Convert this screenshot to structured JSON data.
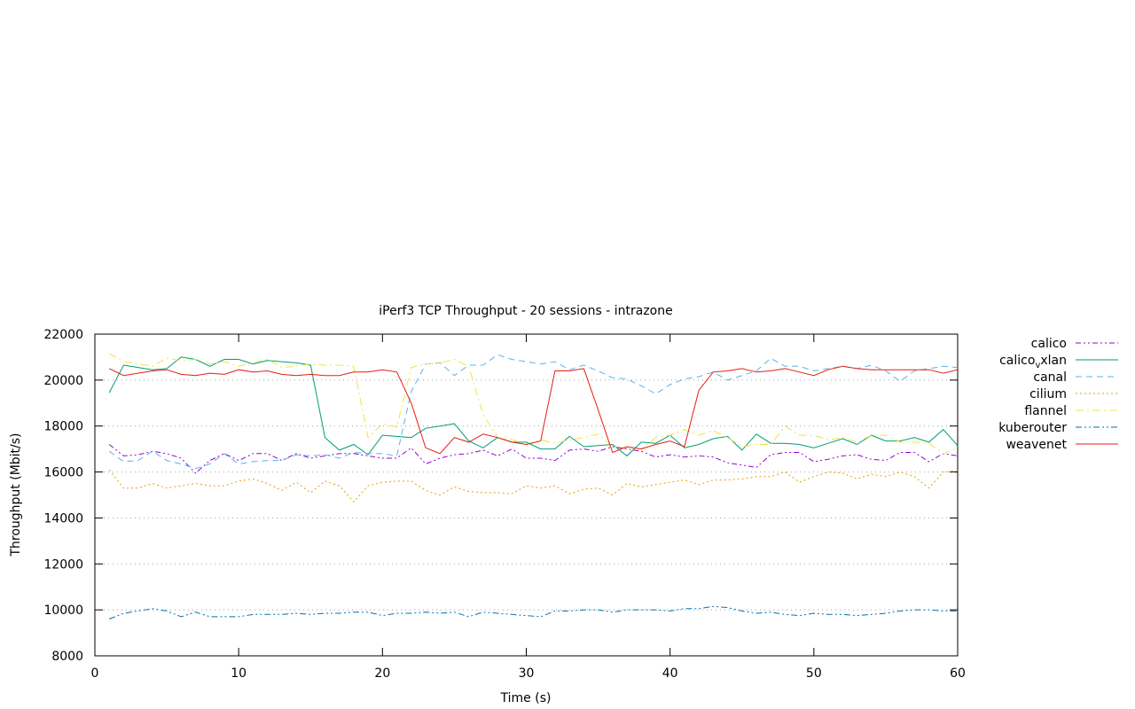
{
  "chart_data": {
    "type": "line",
    "title": "iPerf3 TCP Throughput - 20 sessions - intrazone",
    "xlabel": "Time (s)",
    "ylabel": "Throughput (Mbit/s)",
    "xlim": [
      0,
      60
    ],
    "ylim": [
      8000,
      22000
    ],
    "xticks": [
      "0",
      "10",
      "20",
      "30",
      "40",
      "50",
      "60"
    ],
    "yticks": [
      "8000",
      "10000",
      "12000",
      "14000",
      "16000",
      "18000",
      "20000",
      "22000"
    ],
    "grid": "horizontal dotted",
    "legend_position": "outside-right",
    "x": [
      1,
      2,
      3,
      4,
      5,
      6,
      7,
      8,
      9,
      10,
      11,
      12,
      13,
      14,
      15,
      16,
      17,
      18,
      19,
      20,
      21,
      22,
      23,
      24,
      25,
      26,
      27,
      28,
      29,
      30,
      31,
      32,
      33,
      34,
      35,
      36,
      37,
      38,
      39,
      40,
      41,
      42,
      43,
      44,
      45,
      46,
      47,
      48,
      49,
      50,
      51,
      52,
      53,
      54,
      55,
      56,
      57,
      58,
      59,
      60
    ],
    "series": [
      {
        "name": "calico",
        "color": "#9400d3",
        "dash": "6 3 2 3 2 3",
        "values": [
          17200,
          16700,
          16750,
          16900,
          16800,
          16600,
          15950,
          16500,
          16800,
          16500,
          16800,
          16800,
          16500,
          16800,
          16600,
          16700,
          16800,
          16800,
          16700,
          16600,
          16600,
          17050,
          16350,
          16600,
          16750,
          16800,
          16950,
          16700,
          17000,
          16600,
          16600,
          16500,
          16950,
          17000,
          16900,
          17100,
          17000,
          16900,
          16650,
          16750,
          16650,
          16700,
          16650,
          16400,
          16300,
          16200,
          16750,
          16850,
          16850,
          16450,
          16550,
          16700,
          16750,
          16550,
          16500,
          16850,
          16850,
          16450,
          16800,
          16700
        ]
      },
      {
        "name": "calico_vxlan",
        "label_main": "calico",
        "label_sub": "v",
        "label_rest": "xlan",
        "color": "#009e73",
        "dash": "",
        "values": [
          19450,
          20650,
          20550,
          20450,
          20500,
          21000,
          20900,
          20600,
          20900,
          20900,
          20700,
          20850,
          20800,
          20750,
          20650,
          17500,
          16950,
          17200,
          16750,
          17600,
          17550,
          17500,
          17900,
          18000,
          18100,
          17350,
          17050,
          17500,
          17300,
          17300,
          17000,
          17000,
          17550,
          17100,
          17150,
          17200,
          16700,
          17300,
          17250,
          17600,
          17050,
          17200,
          17450,
          17550,
          16950,
          17650,
          17250,
          17250,
          17200,
          17050,
          17250,
          17450,
          17200,
          17600,
          17350,
          17350,
          17500,
          17300,
          17850,
          17150
        ]
      },
      {
        "name": "canal",
        "color": "#56b4e9",
        "dash": "7 5",
        "values": [
          16900,
          16450,
          16500,
          16900,
          16500,
          16350,
          16150,
          16350,
          16800,
          16350,
          16450,
          16500,
          16500,
          16750,
          16700,
          16750,
          16600,
          16850,
          16800,
          16800,
          16700,
          19500,
          20700,
          20750,
          20200,
          20650,
          20650,
          21100,
          20900,
          20800,
          20700,
          20800,
          20450,
          20650,
          20400,
          20100,
          20050,
          19750,
          19400,
          19800,
          20050,
          20150,
          20350,
          20000,
          20200,
          20400,
          20950,
          20600,
          20600,
          20400,
          20500,
          20600,
          20500,
          20650,
          20400,
          19950,
          20400,
          20500,
          20600,
          20550
        ]
      },
      {
        "name": "cilium",
        "color": "#e69f00",
        "dash": "2 3",
        "values": [
          16100,
          15300,
          15300,
          15500,
          15300,
          15400,
          15500,
          15400,
          15400,
          15600,
          15700,
          15500,
          15200,
          15550,
          15100,
          15600,
          15400,
          14700,
          15400,
          15550,
          15600,
          15600,
          15200,
          15000,
          15350,
          15150,
          15100,
          15100,
          15050,
          15400,
          15300,
          15400,
          15050,
          15250,
          15300,
          15000,
          15500,
          15350,
          15450,
          15550,
          15650,
          15450,
          15650,
          15650,
          15700,
          15800,
          15800,
          16000,
          15550,
          15800,
          16000,
          15950,
          15700,
          15900,
          15800,
          16000,
          15800,
          15300,
          16000,
          16050
        ]
      },
      {
        "name": "flannel",
        "color": "#f0e442",
        "dash": "9 4 2 4",
        "values": [
          21150,
          20800,
          20700,
          20600,
          20950,
          20850,
          20900,
          20700,
          20800,
          20600,
          20750,
          20900,
          20550,
          20600,
          20700,
          20650,
          20650,
          20600,
          17500,
          18100,
          17950,
          20550,
          20700,
          20750,
          20900,
          20600,
          18500,
          17500,
          17400,
          17200,
          17400,
          17250,
          17400,
          17500,
          17650,
          17100,
          17050,
          17000,
          17500,
          17600,
          17850,
          17600,
          17800,
          17500,
          17100,
          17200,
          17200,
          18000,
          17600,
          17600,
          17400,
          17500,
          17300,
          17600,
          17600,
          17300,
          17300,
          17250,
          16800,
          17050
        ]
      },
      {
        "name": "kuberouter",
        "color": "#0072b2",
        "dash": "7 3 2 3 2 3",
        "values": [
          9600,
          9850,
          9950,
          10050,
          9950,
          9700,
          9900,
          9700,
          9700,
          9700,
          9800,
          9800,
          9800,
          9850,
          9800,
          9850,
          9850,
          9900,
          9900,
          9750,
          9850,
          9850,
          9900,
          9850,
          9900,
          9700,
          9900,
          9850,
          9800,
          9750,
          9700,
          9950,
          9950,
          10000,
          10000,
          9900,
          10000,
          10000,
          10000,
          9950,
          10050,
          10050,
          10150,
          10100,
          9950,
          9850,
          9900,
          9800,
          9750,
          9850,
          9800,
          9800,
          9750,
          9800,
          9850,
          9950,
          10000,
          10000,
          9950,
          9950
        ]
      },
      {
        "name": "weavenet",
        "color": "#e51e10",
        "dash": "",
        "values": [
          20500,
          20200,
          20300,
          20400,
          20450,
          20250,
          20200,
          20300,
          20250,
          20450,
          20350,
          20400,
          20250,
          20200,
          20250,
          20200,
          20200,
          20350,
          20350,
          20450,
          20350,
          19000,
          17050,
          16800,
          17500,
          17300,
          17650,
          17500,
          17300,
          17200,
          17350,
          20400,
          20400,
          20500,
          18700,
          16850,
          17100,
          17000,
          17200,
          17350,
          17100,
          19550,
          20350,
          20400,
          20500,
          20350,
          20400,
          20500,
          20350,
          20200,
          20450,
          20600,
          20500,
          20450,
          20450,
          20450,
          20450,
          20450,
          20300,
          20450
        ]
      }
    ]
  }
}
